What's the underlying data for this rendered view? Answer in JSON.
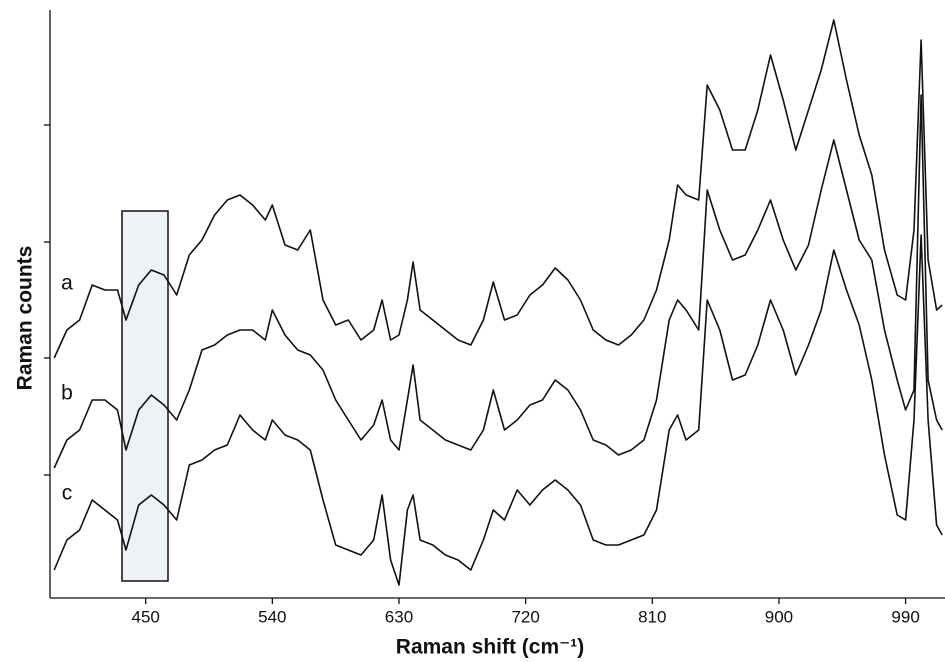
{
  "chart_data": {
    "type": "line",
    "x_label": "Raman shift (cm⁻¹)",
    "y_label": "Raman counts",
    "xlim": [
      382,
      1018
    ],
    "ylim": [
      0,
      588
    ],
    "xticks": [
      450,
      540,
      630,
      720,
      810,
      900,
      990
    ],
    "yticks": [
      123,
      240,
      356,
      473
    ],
    "x": [
      385,
      394,
      403,
      412,
      421,
      430,
      436,
      445,
      454,
      463,
      472,
      481,
      490,
      499,
      508,
      517,
      526,
      535,
      540,
      549,
      558,
      567,
      576,
      585,
      594,
      603,
      612,
      618,
      624,
      630,
      636,
      640,
      645,
      654,
      663,
      672,
      681,
      690,
      697,
      705,
      714,
      723,
      732,
      741,
      750,
      759,
      768,
      777,
      786,
      795,
      804,
      813,
      822,
      828,
      834,
      843,
      849,
      858,
      867,
      876,
      885,
      894,
      903,
      912,
      921,
      930,
      939,
      948,
      957,
      966,
      975,
      984,
      990,
      996,
      1001,
      1006,
      1012,
      1016
    ],
    "series": [
      {
        "name": "a",
        "color": "#111111",
        "values": [
          240,
          268,
          278,
          313,
          308,
          308,
          278,
          313,
          328,
          323,
          303,
          343,
          358,
          383,
          398,
          403,
          393,
          378,
          393,
          353,
          348,
          368,
          298,
          273,
          278,
          258,
          268,
          298,
          258,
          263,
          298,
          336,
          288,
          278,
          268,
          258,
          253,
          278,
          316,
          278,
          283,
          303,
          313,
          330,
          318,
          298,
          268,
          258,
          253,
          263,
          278,
          308,
          358,
          413,
          403,
          398,
          513,
          488,
          448,
          448,
          488,
          543,
          498,
          448,
          488,
          528,
          578,
          518,
          463,
          423,
          348,
          303,
          298,
          368,
          558,
          338,
          288,
          293
        ]
      },
      {
        "name": "b",
        "color": "#111111",
        "values": [
          130,
          158,
          168,
          198,
          198,
          188,
          148,
          188,
          203,
          193,
          178,
          208,
          248,
          253,
          263,
          268,
          268,
          258,
          288,
          263,
          248,
          243,
          228,
          198,
          178,
          158,
          173,
          198,
          158,
          148,
          198,
          233,
          178,
          168,
          158,
          153,
          148,
          168,
          208,
          168,
          178,
          193,
          198,
          218,
          208,
          188,
          158,
          153,
          143,
          148,
          158,
          198,
          278,
          298,
          288,
          268,
          408,
          368,
          338,
          343,
          368,
          398,
          358,
          328,
          353,
          408,
          458,
          408,
          358,
          338,
          268,
          218,
          188,
          208,
          503,
          218,
          178,
          168
        ]
      },
      {
        "name": "c",
        "color": "#111111",
        "values": [
          28,
          58,
          68,
          98,
          88,
          78,
          48,
          93,
          103,
          93,
          78,
          133,
          138,
          148,
          153,
          183,
          168,
          158,
          178,
          163,
          158,
          148,
          98,
          53,
          48,
          43,
          58,
          103,
          38,
          13,
          88,
          103,
          58,
          53,
          43,
          38,
          28,
          58,
          88,
          78,
          108,
          93,
          108,
          118,
          108,
          93,
          58,
          53,
          53,
          58,
          63,
          88,
          168,
          183,
          158,
          168,
          298,
          268,
          218,
          223,
          253,
          298,
          268,
          223,
          253,
          288,
          348,
          308,
          273,
          218,
          143,
          83,
          78,
          178,
          363,
          178,
          73,
          63
        ]
      }
    ]
  }
}
